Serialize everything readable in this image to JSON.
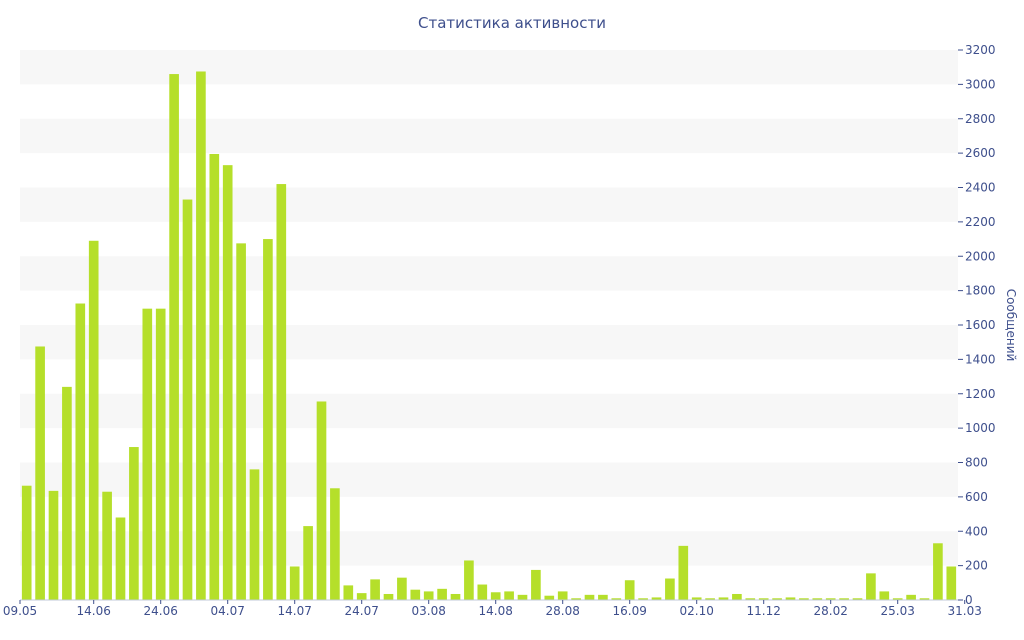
{
  "chart_data": {
    "type": "bar",
    "title": "Статистика активности",
    "ylabel": "Сообщений",
    "xlabel": "",
    "ylim": [
      0,
      3200
    ],
    "y_ticks": [
      0,
      200,
      400,
      600,
      800,
      1000,
      1200,
      1400,
      1600,
      1800,
      2000,
      2200,
      2400,
      2600,
      2800,
      3000,
      3200
    ],
    "y_axis_side": "right",
    "grid": "alternating horizontal bands",
    "bar_color": "#b5df2a",
    "band_color": "#f7f7f7",
    "text_color": "#3e4f8c",
    "x_tick_labels": [
      {
        "index": 0,
        "label": "09.05"
      },
      {
        "index": 5,
        "label": "14.06"
      },
      {
        "index": 10,
        "label": "24.06"
      },
      {
        "index": 15,
        "label": "04.07"
      },
      {
        "index": 20,
        "label": "14.07"
      },
      {
        "index": 25,
        "label": "24.07"
      },
      {
        "index": 30,
        "label": "03.08"
      },
      {
        "index": 35,
        "label": "14.08"
      },
      {
        "index": 40,
        "label": "28.08"
      },
      {
        "index": 45,
        "label": "16.09"
      },
      {
        "index": 50,
        "label": "02.10"
      },
      {
        "index": 55,
        "label": "11.12"
      },
      {
        "index": 60,
        "label": "28.02"
      },
      {
        "index": 65,
        "label": "25.03"
      },
      {
        "index": 70,
        "label": "31.03"
      }
    ],
    "values": [
      665,
      1475,
      635,
      1240,
      1725,
      2090,
      630,
      480,
      890,
      1695,
      1695,
      3060,
      2330,
      3075,
      2595,
      2530,
      2075,
      760,
      2100,
      2420,
      195,
      430,
      1155,
      650,
      85,
      40,
      120,
      35,
      130,
      60,
      50,
      65,
      35,
      230,
      90,
      45,
      50,
      30,
      175,
      25,
      50,
      10,
      30,
      30,
      10,
      115,
      10,
      15,
      125,
      315,
      15,
      10,
      15,
      35,
      10,
      10,
      10,
      15,
      10,
      10,
      10,
      10,
      10,
      155,
      50,
      10,
      30,
      10,
      330,
      195
    ]
  }
}
